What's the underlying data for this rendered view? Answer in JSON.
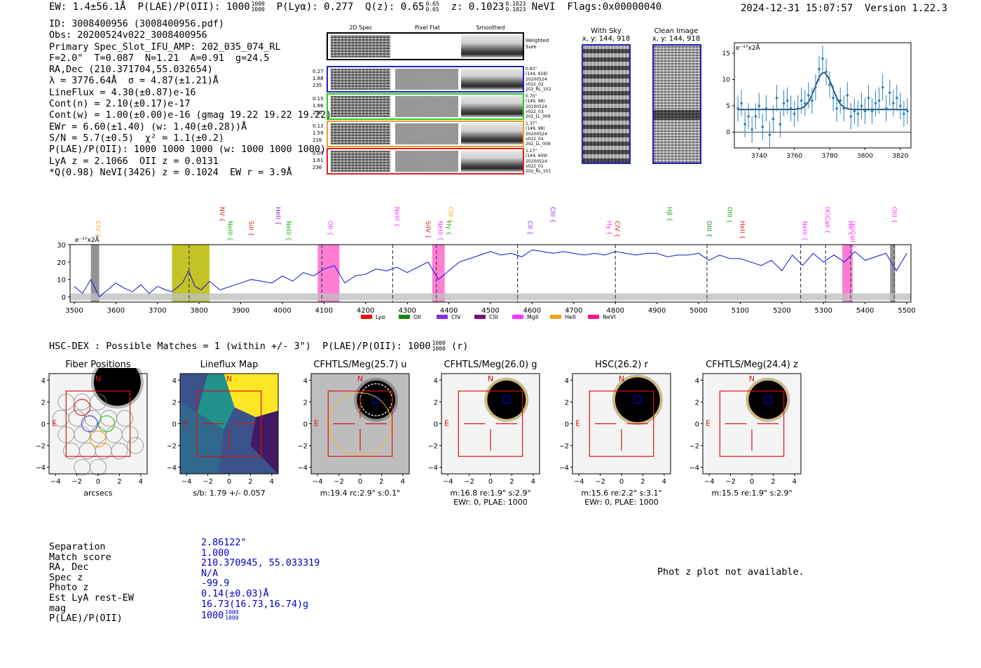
{
  "header": {
    "ew": "EW: 1.4±56.1Å",
    "plae": "P(LAE)/P(OII): 1000",
    "plae_frac": [
      "1000",
      "1000"
    ],
    "plya": "P(Lyα): 0.277",
    "qz": "Q(z): 0.65",
    "qz_frac": [
      "0.65",
      "0.65"
    ],
    "z": "z: 0.1023",
    "z_frac": [
      "0.1023",
      "0.1023"
    ],
    "nevi_flags": "NeVI  Flags:0x00000040",
    "timestamp_version": "2024-12-31 15:07:57  Version 1.22.3"
  },
  "info_lines": [
    "ID: 3008400956 (3008400956.pdf)",
    "Obs: 20200524v022_3008400956",
    "Primary Spec_Slot_IFU_AMP: 202_035_074_RL",
    "F=2.0\"  T=0.087  N=1.21  A=0.91  g=24.5",
    "RA,Dec (210.371704,55.032654)",
    "λ = 3776.64Å  σ = 4.87(±1.21)Å",
    "LineFlux = 4.30(±0.87)e-16",
    "Cont(n) = 2.10(±0.17)e-17",
    "Cont(w) = 1.00(±0.00)e-16 (gmag 19.22 19.22 19.22)",
    "EWr = 6.60(±1.40) (w: 1.40(±0.28))Å",
    "S/N = 5.7(±0.5)  χ² = 1.1(±0.2)",
    "P(LAE)/P(OII): 1000 1000 1000 (w: 1000 1000 1000)",
    "LyA z = 2.1066  OII z = 0.0131",
    "*Q(0.98) NeVI(3426) z = 0.1024  EW r = 3.9Å"
  ],
  "stamps": {
    "col_titles": [
      "2D Spec",
      "Pixel Flat",
      "Smoothed"
    ],
    "weighted_sum": "Weighted Sum",
    "rows": [
      {
        "stats": [
          "0.27",
          "1.88",
          "235"
        ],
        "meta": [
          "0.83\"",
          "(144, 918)",
          "20200524",
          "v022_02",
          "202_RL_102"
        ],
        "color": "#2222bb"
      },
      {
        "stats": [
          "0.15",
          "1.86",
          "216"
        ],
        "meta": [
          "0.70\"",
          "(149, 98)",
          "20200524",
          "v022_03",
          "202_LL_009"
        ],
        "color": "#22cc22"
      },
      {
        "stats": [
          "0.13",
          "1.59",
          "216"
        ],
        "meta": [
          "1.37\"",
          "(149, 98)",
          "20200524",
          "v022_01",
          "202_LL_009"
        ],
        "color": "#f0a020"
      },
      {
        "stats": [
          "0.09",
          "1.61",
          "236"
        ],
        "meta": [
          "1.17\"",
          "(144, 909)",
          "20200524",
          "v022_01",
          "202_RL_101"
        ],
        "color": "#dd2222"
      }
    ],
    "with_sky_title": "With Sky",
    "with_sky_sub": "x, y: 144, 918",
    "clean_title": "Clean Image",
    "clean_sub": "x, y: 144, 918"
  },
  "chart_data": [
    {
      "type": "scatter",
      "title": "",
      "ylabel": "e⁻¹⁷x2Å",
      "xlim": [
        3726,
        3826
      ],
      "ylim": [
        -3,
        17
      ],
      "xticks": [
        3740,
        3760,
        3780,
        3800,
        3820
      ],
      "yticks": [
        0,
        5,
        10,
        15
      ],
      "x": [
        3728,
        3730,
        3732,
        3734,
        3736,
        3738,
        3740,
        3742,
        3744,
        3746,
        3748,
        3750,
        3752,
        3754,
        3756,
        3758,
        3760,
        3762,
        3764,
        3766,
        3768,
        3770,
        3772,
        3774,
        3776,
        3778,
        3780,
        3782,
        3784,
        3786,
        3788,
        3790,
        3792,
        3794,
        3796,
        3798,
        3800,
        3802,
        3804,
        3806,
        3808,
        3810,
        3812,
        3814,
        3816,
        3818,
        3820,
        3822,
        3824
      ],
      "y": [
        4.5,
        5.5,
        1.5,
        3.0,
        0.5,
        3.0,
        5.0,
        1.0,
        4.5,
        -0.5,
        2.5,
        6.5,
        1.5,
        5.5,
        6.0,
        4.5,
        3.5,
        4.5,
        6.0,
        5.5,
        7.0,
        6.0,
        8.5,
        12.0,
        14.0,
        11.5,
        9.0,
        6.5,
        4.5,
        6.0,
        4.5,
        7.0,
        3.0,
        4.0,
        3.5,
        5.0,
        4.0,
        6.5,
        4.0,
        5.5,
        6.0,
        8.5,
        4.5,
        7.5,
        5.5,
        6.5,
        5.0,
        3.5,
        4.0
      ],
      "err": 2.5,
      "fit": {
        "baseline": 4.3,
        "amplitude": 7.0,
        "center": 3776.6,
        "sigma": 4.9
      }
    },
    {
      "type": "line",
      "title": "",
      "ylabel": "e⁻¹⁷x2Å",
      "xlim": [
        3490,
        5510
      ],
      "ylim": [
        -3,
        30
      ],
      "xticks": [
        3500,
        3600,
        3700,
        3800,
        3900,
        4000,
        4100,
        4200,
        4300,
        4400,
        4500,
        4600,
        4700,
        4800,
        4900,
        5000,
        5100,
        5200,
        5300,
        5400,
        5500
      ],
      "yticks": [
        0,
        10,
        20,
        30
      ],
      "gap": [
        3735,
        3825
      ],
      "spectrum_x": [
        3500,
        3520,
        3540,
        3560,
        3580,
        3600,
        3620,
        3640,
        3660,
        3680,
        3700,
        3720,
        3735,
        3760,
        3775,
        3790,
        3805,
        3825,
        3850,
        3875,
        3900,
        3925,
        3950,
        3975,
        4000,
        4025,
        4050,
        4075,
        4100,
        4125,
        4150,
        4175,
        4200,
        4225,
        4250,
        4275,
        4300,
        4325,
        4350,
        4375,
        4400,
        4425,
        4450,
        4475,
        4500,
        4525,
        4550,
        4575,
        4600,
        4625,
        4650,
        4675,
        4700,
        4725,
        4750,
        4775,
        4800,
        4825,
        4850,
        4875,
        4900,
        4925,
        4950,
        4975,
        5000,
        5025,
        5050,
        5075,
        5100,
        5125,
        5150,
        5175,
        5200,
        5225,
        5250,
        5275,
        5300,
        5325,
        5350,
        5375,
        5400,
        5425,
        5450,
        5475,
        5500
      ],
      "spectrum_y": [
        6,
        2,
        10,
        0,
        4,
        8,
        5,
        3,
        7,
        2,
        6,
        4,
        3,
        8,
        15,
        6,
        4,
        9,
        4,
        6,
        8,
        10,
        9,
        8,
        12,
        9,
        14,
        12,
        16,
        18,
        8,
        12,
        13,
        16,
        15,
        17,
        14,
        17,
        20,
        10,
        15,
        20,
        22,
        24,
        26,
        24,
        25,
        23,
        27,
        26,
        25,
        26,
        25,
        24,
        25,
        24,
        26,
        25,
        24,
        25,
        25,
        23,
        24,
        24,
        25,
        21,
        24,
        22,
        22,
        20,
        18,
        21,
        15,
        24,
        18,
        25,
        20,
        24,
        20,
        26,
        21,
        23,
        25,
        15,
        25
      ],
      "line_markers": [
        {
          "name": "CIV",
          "x": 3552,
          "color": "#f0a020"
        },
        {
          "name": "NV",
          "x": 3850,
          "color": "#dd2222"
        },
        {
          "name": "NeIII",
          "x": 3870,
          "color": "#22aa22"
        },
        {
          "name": "SiII",
          "x": 3920,
          "color": "#dd2222"
        },
        {
          "name": "HeII",
          "x": 3985,
          "color": "#8a2be2"
        },
        {
          "name": "NeIII",
          "x": 4010,
          "color": "#22aa22"
        },
        {
          "name": "OII",
          "x": 4110,
          "color": "#ff33ff"
        },
        {
          "name": "NeIII",
          "x": 4270,
          "color": "#ff33ff"
        },
        {
          "name": "SiIV",
          "x": 4345,
          "color": "#dd2222"
        },
        {
          "name": "NeIII",
          "x": 4375,
          "color": "#ff33ff"
        },
        {
          "name": "CIII",
          "x": 4400,
          "color": "#f0a020"
        },
        {
          "name": "Hγ",
          "x": 4395,
          "color": "#22aa22"
        },
        {
          "name": "CII",
          "x": 4590,
          "color": "#8a2be2"
        },
        {
          "name": "CIII",
          "x": 4645,
          "color": "#8a2be2"
        },
        {
          "name": "Hγ",
          "x": 4780,
          "color": "#ff33ff"
        },
        {
          "name": "CIV",
          "x": 4800,
          "color": "#dd2222"
        },
        {
          "name": "Hβ",
          "x": 4925,
          "color": "#22aa22"
        },
        {
          "name": "OIII",
          "x": 5020,
          "color": "#ff33ff"
        },
        {
          "name": "OIII",
          "x": 5020,
          "color": "#22aa22"
        },
        {
          "name": "OIII",
          "x": 5070,
          "color": "#22aa22"
        },
        {
          "name": "HeII",
          "x": 5100,
          "color": "#dd2222"
        },
        {
          "name": "NeIII",
          "x": 5250,
          "color": "#ff33ff"
        },
        {
          "name": "(K)CaII",
          "x": 5305,
          "color": "#ff33ff"
        },
        {
          "name": "He",
          "x": 5360,
          "color": "#ff33ff"
        },
        {
          "name": "(H)CaII",
          "x": 5365,
          "color": "#ff33ff"
        },
        {
          "name": "OIII",
          "x": 5465,
          "color": "#ff33ff"
        }
      ],
      "dashed_lines": [
        3776,
        4095,
        4265,
        4370,
        4565,
        4800,
        5020,
        5245,
        5305,
        5365,
        5470
      ],
      "shaded_bands": [
        {
          "from": 3540,
          "to": 3560,
          "color": "#808080"
        },
        {
          "from": 3735,
          "to": 3825,
          "color": "#b8b800"
        },
        {
          "from": 4085,
          "to": 4137,
          "color": "#ff66cc"
        },
        {
          "from": 4360,
          "to": 4390,
          "color": "#ff66cc"
        },
        {
          "from": 5345,
          "to": 5370,
          "color": "#ff66cc"
        },
        {
          "from": 5460,
          "to": 5472,
          "color": "#808080"
        }
      ],
      "legend": [
        {
          "name": "Lyα",
          "color": "#ee1111"
        },
        {
          "name": "OII",
          "color": "#118811"
        },
        {
          "name": "CIV",
          "color": "#8a2be2"
        },
        {
          "name": "CIII",
          "color": "#771177"
        },
        {
          "name": "MgII",
          "color": "#ff33ff"
        },
        {
          "name": "HeII",
          "color": "#f0a020"
        },
        {
          "name": "NeVI",
          "color": "#ff1493"
        }
      ],
      "legend_position": "bottom-center"
    }
  ],
  "hsc": {
    "title": "HSC-DEX : Possible Matches = 1 (within +/- 3\")  P(LAE)/P(OII): 1000",
    "title_frac": [
      "1000",
      "1000"
    ],
    "title_suffix": "(r)",
    "panels": [
      {
        "title": "Fiber Positions",
        "caption1": "arcsecs",
        "caption2": "",
        "caption3": ""
      },
      {
        "title": "Lineflux Map",
        "caption1": "s/b: 1.79 +/- 0.057",
        "caption2": "",
        "caption3": ""
      },
      {
        "title": "CFHTLS/Meg(25.7) u",
        "caption1": "m:19.4 rc:2.9\"  s:0.1\"",
        "caption2": "",
        "caption3": ""
      },
      {
        "title": "CFHTLS/Meg(26.0) g",
        "caption1": "m:16.8  re:1.9\"  s:2.9\"",
        "caption2": "EWr: 0, PLAE: 1000",
        "caption3": ""
      },
      {
        "title": "HSC(26.2) r",
        "caption1": "m:15.6  re:2.2\"  s:3.1\"",
        "caption2": "EWr: 0, PLAE: 1000",
        "caption3": ""
      },
      {
        "title": "CFHTLS/Meg(24.4) z",
        "caption1": "m:15.5  re:1.9\"  s:2.9\"",
        "caption2": "",
        "caption3": ""
      }
    ],
    "ticks": [
      "4",
      "2",
      "0",
      "−2",
      "−4"
    ],
    "xticks": [
      "−4",
      "−2",
      "0",
      "2",
      "4"
    ],
    "north": "N",
    "east": "E"
  },
  "bottom": {
    "labels": [
      "Separation",
      "Match score",
      "RA, Dec",
      "Spec z",
      "Photo z",
      "Est LyA rest-EW",
      "mag",
      "P(LAE)/P(OII)"
    ],
    "values": [
      "2.86122\"",
      "1.000",
      "210.370945, 55.033319",
      "N/A",
      "-99.9",
      "0.14(±0.03)Å",
      "16.73(16.73,16.74)g",
      "1000"
    ],
    "plae_frac": [
      "1000",
      "1000"
    ],
    "phot_z": "Phot z plot not available."
  }
}
